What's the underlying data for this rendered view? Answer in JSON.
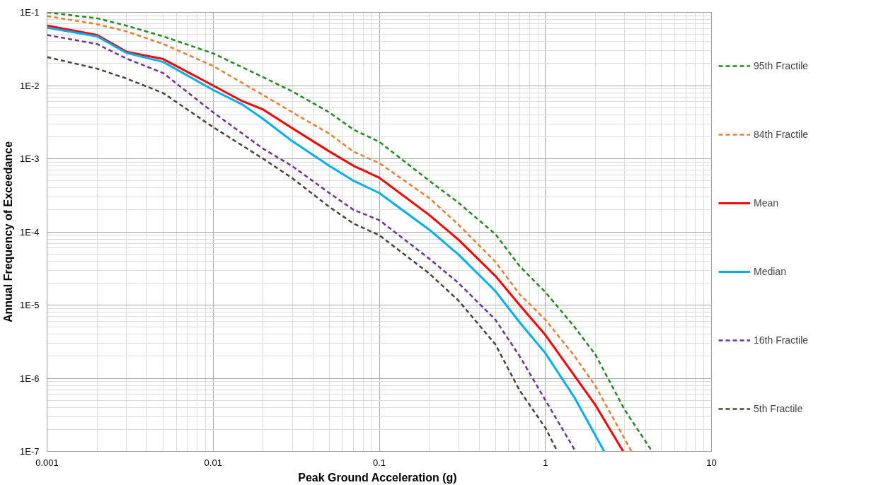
{
  "chart_data": {
    "type": "line",
    "xlabel": "Peak Ground Acceleration  (g)",
    "ylabel": "Annual Frequency of Exceedance",
    "log": "xy",
    "grid": true,
    "legend": "right",
    "xlim": [
      0.001,
      10
    ],
    "ylim": [
      1e-07,
      0.1
    ],
    "xticks": [
      0.001,
      0.01,
      0.1,
      1,
      10
    ],
    "yticks": [
      {
        "value": 1e-07,
        "label": "1E-7"
      },
      {
        "value": 1e-06,
        "label": "1E-6"
      },
      {
        "value": 1e-05,
        "label": "1E-5"
      },
      {
        "value": 0.0001,
        "label": "1E-4"
      },
      {
        "value": 0.001,
        "label": "1E-3"
      },
      {
        "value": 0.01,
        "label": "1E-2"
      },
      {
        "value": 0.1,
        "label": "1E-1"
      }
    ],
    "series": [
      {
        "name": "95th Fractile",
        "color": "#1e8c1e",
        "line_style": "dashed",
        "x": [
          0.001,
          0.002,
          0.003,
          0.005,
          0.01,
          0.02,
          0.03,
          0.05,
          0.07,
          0.1,
          0.2,
          0.3,
          0.5,
          0.7,
          1,
          1.5,
          2,
          3,
          4.39
        ],
        "values": [
          0.1,
          0.083,
          0.066,
          0.047,
          0.0275,
          0.013,
          0.0083,
          0.0043,
          0.0025,
          0.0017,
          0.0005,
          0.00025,
          9.3e-05,
          3.4e-05,
          1.5e-05,
          5e-06,
          2.1e-06,
          3.7e-07,
          1e-07
        ]
      },
      {
        "name": "84th Fractile",
        "color": "#ed7d31",
        "line_style": "dashed",
        "x": [
          0.001,
          0.002,
          0.003,
          0.005,
          0.01,
          0.02,
          0.03,
          0.05,
          0.07,
          0.1,
          0.2,
          0.3,
          0.5,
          0.7,
          1,
          1.5,
          2,
          3.3
        ],
        "values": [
          0.089,
          0.069,
          0.055,
          0.037,
          0.0185,
          0.0074,
          0.0043,
          0.0022,
          0.00125,
          0.00087,
          0.00029,
          0.000125,
          3.9e-05,
          1.4e-05,
          6.3e-06,
          2e-06,
          7.8e-07,
          1e-07
        ]
      },
      {
        "name": "Mean",
        "color": "#ff0000",
        "line_style": "solid",
        "x": [
          0.001,
          0.002,
          0.003,
          0.005,
          0.01,
          0.015,
          0.02,
          0.03,
          0.05,
          0.07,
          0.1,
          0.2,
          0.3,
          0.5,
          0.7,
          1,
          1.5,
          2,
          2.94
        ],
        "values": [
          0.066,
          0.049,
          0.029,
          0.023,
          0.01,
          0.0061,
          0.0047,
          0.0026,
          0.00126,
          0.0008,
          0.00055,
          0.00017,
          7.8e-05,
          2.5e-05,
          1e-05,
          3.9e-06,
          1.07e-06,
          4.3e-07,
          1e-07
        ]
      },
      {
        "name": "Median",
        "color": "#00b0f0",
        "line_style": "solid",
        "x": [
          0.001,
          0.002,
          0.003,
          0.005,
          0.01,
          0.015,
          0.02,
          0.03,
          0.05,
          0.07,
          0.1,
          0.2,
          0.3,
          0.5,
          0.7,
          1,
          1.5,
          2.26
        ],
        "values": [
          0.062,
          0.047,
          0.028,
          0.021,
          0.0087,
          0.0055,
          0.0035,
          0.00173,
          0.0008,
          0.0005,
          0.00034,
          0.000107,
          4.9e-05,
          1.55e-05,
          5.8e-06,
          2.2e-06,
          5.4e-07,
          1e-07
        ]
      },
      {
        "name": "16th Fractile",
        "color": "#7030a0",
        "line_style": "dashed",
        "x": [
          0.001,
          0.002,
          0.003,
          0.005,
          0.01,
          0.02,
          0.03,
          0.05,
          0.07,
          0.1,
          0.2,
          0.3,
          0.5,
          0.7,
          1,
          1.52
        ],
        "values": [
          0.049,
          0.037,
          0.0234,
          0.0148,
          0.0043,
          0.00137,
          0.00079,
          0.00034,
          0.0002,
          0.000145,
          4.3e-05,
          2e-05,
          6.3e-06,
          2e-06,
          5e-07,
          1e-07
        ]
      },
      {
        "name": "5th Fractile",
        "color": "#4a4436",
        "line_style": "dashed",
        "x": [
          0.001,
          0.002,
          0.003,
          0.005,
          0.01,
          0.02,
          0.03,
          0.05,
          0.07,
          0.1,
          0.2,
          0.3,
          0.5,
          0.7,
          1,
          1.18
        ],
        "values": [
          0.0245,
          0.017,
          0.0125,
          0.0079,
          0.0027,
          0.001,
          0.00054,
          0.00022,
          0.00013,
          9e-05,
          2.7e-05,
          1.15e-05,
          2.9e-06,
          6.8e-07,
          2.1e-07,
          1e-07
        ]
      }
    ]
  }
}
